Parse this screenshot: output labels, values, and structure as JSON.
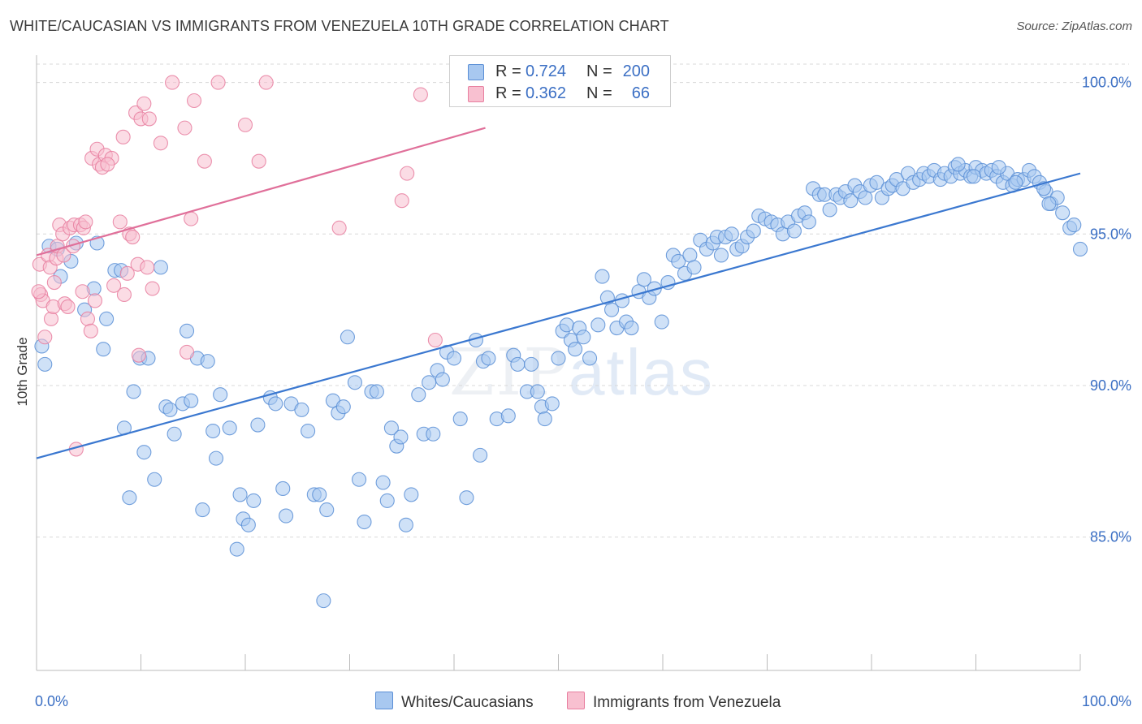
{
  "title": "WHITE/CAUCASIAN VS IMMIGRANTS FROM VENEZUELA 10TH GRADE CORRELATION CHART",
  "source": "Source: ZipAtlas.com",
  "watermark": {
    "zip": "ZIP",
    "atlas": "atlas"
  },
  "legend": {
    "rows": [
      {
        "r_label": "R =",
        "r_value": "0.724",
        "n_label": "N =",
        "n_value": "200",
        "color": "#a8c8f0",
        "border": "#5b8fd6"
      },
      {
        "r_label": "R =",
        "r_value": "0.362",
        "n_label": "N =",
        "n_value": "66",
        "color": "#f8c0d0",
        "border": "#e87fa0"
      }
    ]
  },
  "bottom_legend": [
    {
      "label": "Whites/Caucasians",
      "color": "#a8c8f0",
      "border": "#5b8fd6"
    },
    {
      "label": "Immigrants from Venezuela",
      "color": "#f8c0d0",
      "border": "#e87fa0"
    }
  ],
  "chart_data": {
    "type": "scatter",
    "title": "WHITE/CAUCASIAN VS IMMIGRANTS FROM VENEZUELA 10TH GRADE CORRELATION CHART",
    "xlabel": "",
    "ylabel": "10th Grade",
    "xlim": [
      0,
      100
    ],
    "ylim": [
      80.6,
      100.9
    ],
    "x_tick_labels": [
      "0.0%",
      "100.0%"
    ],
    "y_ticks": [
      85,
      90,
      95,
      100
    ],
    "y_tick_labels": [
      "85.0%",
      "90.0%",
      "95.0%",
      "100.0%"
    ],
    "grid": true,
    "legend_position": "top-center",
    "colors": {
      "blue": "#5b8fd6",
      "blue_fill": "#a8c8f0",
      "pink": "#e87fa0",
      "pink_fill": "#f8c0d0",
      "blue_line": "#3b78d0",
      "pink_line": "#e0709a"
    },
    "series": [
      {
        "name": "Whites/Caucasians",
        "trend": {
          "x": [
            0,
            100
          ],
          "y": [
            87.6,
            97.0
          ]
        },
        "points": [
          [
            0.5,
            91.3
          ],
          [
            0.8,
            90.7
          ],
          [
            1.2,
            94.6
          ],
          [
            2.0,
            94.5
          ],
          [
            2.3,
            93.6
          ],
          [
            3.3,
            94.1
          ],
          [
            3.8,
            94.7
          ],
          [
            4.6,
            92.5
          ],
          [
            5.5,
            93.2
          ],
          [
            5.8,
            94.7
          ],
          [
            6.4,
            91.2
          ],
          [
            6.7,
            92.2
          ],
          [
            7.5,
            93.8
          ],
          [
            8.1,
            93.8
          ],
          [
            8.4,
            88.6
          ],
          [
            8.9,
            86.3
          ],
          [
            9.3,
            89.8
          ],
          [
            9.9,
            90.9
          ],
          [
            10.3,
            87.8
          ],
          [
            10.7,
            90.9
          ],
          [
            11.3,
            86.9
          ],
          [
            11.9,
            93.9
          ],
          [
            12.4,
            89.3
          ],
          [
            12.8,
            89.2
          ],
          [
            13.2,
            88.4
          ],
          [
            14.0,
            89.4
          ],
          [
            14.4,
            91.8
          ],
          [
            14.8,
            89.5
          ],
          [
            15.4,
            90.9
          ],
          [
            15.9,
            85.9
          ],
          [
            16.4,
            90.8
          ],
          [
            16.9,
            88.5
          ],
          [
            17.2,
            87.6
          ],
          [
            17.6,
            89.7
          ],
          [
            18.5,
            88.6
          ],
          [
            19.2,
            84.6
          ],
          [
            19.5,
            86.4
          ],
          [
            19.8,
            85.6
          ],
          [
            20.3,
            85.4
          ],
          [
            20.8,
            86.2
          ],
          [
            21.2,
            88.7
          ],
          [
            22.4,
            89.6
          ],
          [
            22.9,
            89.4
          ],
          [
            23.6,
            86.6
          ],
          [
            23.9,
            85.7
          ],
          [
            24.4,
            89.4
          ],
          [
            25.4,
            89.2
          ],
          [
            26.0,
            88.5
          ],
          [
            26.6,
            86.4
          ],
          [
            27.1,
            86.4
          ],
          [
            27.5,
            82.9
          ],
          [
            27.8,
            85.9
          ],
          [
            28.4,
            89.5
          ],
          [
            28.9,
            89.1
          ],
          [
            29.4,
            89.3
          ],
          [
            29.8,
            91.6
          ],
          [
            30.5,
            90.1
          ],
          [
            30.9,
            86.9
          ],
          [
            31.4,
            85.5
          ],
          [
            32.1,
            89.8
          ],
          [
            32.6,
            89.8
          ],
          [
            33.2,
            86.8
          ],
          [
            33.6,
            86.2
          ],
          [
            34.0,
            88.6
          ],
          [
            34.5,
            88.0
          ],
          [
            34.9,
            88.3
          ],
          [
            35.4,
            85.4
          ],
          [
            35.9,
            86.4
          ],
          [
            36.6,
            89.7
          ],
          [
            37.1,
            88.4
          ],
          [
            37.6,
            90.1
          ],
          [
            38.0,
            88.4
          ],
          [
            38.4,
            90.5
          ],
          [
            38.9,
            90.2
          ],
          [
            39.3,
            91.1
          ],
          [
            40.0,
            90.9
          ],
          [
            40.6,
            88.9
          ],
          [
            41.2,
            86.3
          ],
          [
            42.1,
            91.5
          ],
          [
            42.5,
            87.7
          ],
          [
            42.8,
            90.8
          ],
          [
            43.3,
            90.9
          ],
          [
            44.1,
            88.9
          ],
          [
            45.2,
            89.0
          ],
          [
            45.7,
            91.0
          ],
          [
            46.1,
            90.7
          ],
          [
            47.0,
            89.8
          ],
          [
            47.4,
            90.7
          ],
          [
            48.0,
            89.8
          ],
          [
            48.4,
            89.3
          ],
          [
            48.7,
            88.9
          ],
          [
            49.4,
            89.4
          ],
          [
            50.0,
            90.9
          ],
          [
            50.4,
            91.8
          ],
          [
            50.8,
            92.0
          ],
          [
            51.2,
            91.5
          ],
          [
            51.6,
            91.2
          ],
          [
            52.0,
            91.9
          ],
          [
            52.4,
            91.6
          ],
          [
            53.0,
            90.9
          ],
          [
            53.8,
            92.0
          ],
          [
            54.2,
            93.6
          ],
          [
            54.7,
            92.9
          ],
          [
            55.1,
            92.5
          ],
          [
            55.6,
            91.9
          ],
          [
            56.1,
            92.8
          ],
          [
            56.5,
            92.1
          ],
          [
            57.0,
            91.9
          ],
          [
            57.7,
            93.1
          ],
          [
            58.2,
            93.5
          ],
          [
            58.7,
            92.9
          ],
          [
            59.2,
            93.2
          ],
          [
            59.9,
            92.1
          ],
          [
            60.5,
            93.4
          ],
          [
            61.0,
            94.3
          ],
          [
            61.5,
            94.1
          ],
          [
            62.1,
            93.7
          ],
          [
            62.6,
            94.3
          ],
          [
            63.0,
            93.9
          ],
          [
            63.6,
            94.8
          ],
          [
            64.2,
            94.5
          ],
          [
            64.8,
            94.7
          ],
          [
            65.2,
            94.9
          ],
          [
            65.6,
            94.3
          ],
          [
            66.0,
            94.9
          ],
          [
            66.6,
            95.0
          ],
          [
            67.1,
            94.5
          ],
          [
            67.6,
            94.6
          ],
          [
            68.1,
            94.9
          ],
          [
            68.7,
            95.1
          ],
          [
            69.2,
            95.6
          ],
          [
            69.8,
            95.5
          ],
          [
            70.4,
            95.4
          ],
          [
            71.0,
            95.3
          ],
          [
            71.5,
            95.0
          ],
          [
            72.0,
            95.4
          ],
          [
            72.6,
            95.1
          ],
          [
            73.0,
            95.6
          ],
          [
            73.6,
            95.7
          ],
          [
            74.0,
            95.4
          ],
          [
            74.4,
            96.5
          ],
          [
            75.0,
            96.3
          ],
          [
            75.5,
            96.3
          ],
          [
            76.0,
            95.8
          ],
          [
            76.6,
            96.3
          ],
          [
            77.0,
            96.2
          ],
          [
            77.5,
            96.4
          ],
          [
            78.0,
            96.1
          ],
          [
            78.4,
            96.6
          ],
          [
            78.9,
            96.4
          ],
          [
            79.4,
            96.2
          ],
          [
            79.9,
            96.6
          ],
          [
            80.5,
            96.7
          ],
          [
            81.0,
            96.2
          ],
          [
            81.6,
            96.5
          ],
          [
            82.0,
            96.6
          ],
          [
            82.4,
            96.8
          ],
          [
            83.0,
            96.5
          ],
          [
            83.5,
            97.0
          ],
          [
            84.0,
            96.7
          ],
          [
            84.6,
            96.8
          ],
          [
            85.0,
            97.0
          ],
          [
            85.5,
            96.9
          ],
          [
            86.0,
            97.1
          ],
          [
            86.6,
            96.8
          ],
          [
            87.0,
            97.0
          ],
          [
            87.6,
            96.9
          ],
          [
            88.0,
            97.2
          ],
          [
            88.5,
            97.0
          ],
          [
            89.0,
            97.1
          ],
          [
            89.5,
            96.9
          ],
          [
            90.0,
            97.2
          ],
          [
            90.6,
            97.1
          ],
          [
            91.0,
            97.0
          ],
          [
            91.5,
            97.1
          ],
          [
            92.0,
            96.9
          ],
          [
            92.6,
            96.7
          ],
          [
            93.0,
            97.0
          ],
          [
            93.5,
            96.6
          ],
          [
            94.0,
            96.8
          ],
          [
            94.6,
            96.8
          ],
          [
            95.1,
            97.1
          ],
          [
            95.6,
            96.9
          ],
          [
            96.1,
            96.7
          ],
          [
            96.7,
            96.4
          ],
          [
            97.2,
            96.0
          ],
          [
            97.8,
            96.2
          ],
          [
            98.3,
            95.7
          ],
          [
            99.0,
            95.2
          ],
          [
            99.4,
            95.3
          ],
          [
            100.0,
            94.5
          ],
          [
            96.5,
            96.5
          ],
          [
            97.0,
            96.0
          ],
          [
            93.8,
            96.7
          ],
          [
            92.2,
            97.2
          ],
          [
            89.8,
            96.9
          ],
          [
            88.3,
            97.3
          ]
        ]
      },
      {
        "name": "Immigrants from Venezuela",
        "trend": {
          "x": [
            0,
            43
          ],
          "y": [
            94.3,
            98.5
          ]
        },
        "points": [
          [
            0.3,
            94.0
          ],
          [
            0.4,
            93.0
          ],
          [
            0.6,
            92.8
          ],
          [
            0.8,
            91.6
          ],
          [
            1.1,
            94.3
          ],
          [
            1.3,
            93.9
          ],
          [
            1.4,
            92.2
          ],
          [
            1.6,
            92.6
          ],
          [
            1.9,
            94.2
          ],
          [
            2.0,
            94.6
          ],
          [
            2.2,
            95.3
          ],
          [
            2.5,
            95.0
          ],
          [
            2.6,
            94.3
          ],
          [
            2.7,
            92.7
          ],
          [
            3.0,
            92.6
          ],
          [
            3.2,
            95.2
          ],
          [
            3.5,
            94.6
          ],
          [
            3.6,
            95.3
          ],
          [
            3.8,
            87.9
          ],
          [
            4.2,
            95.3
          ],
          [
            4.4,
            93.1
          ],
          [
            4.5,
            95.2
          ],
          [
            4.7,
            95.4
          ],
          [
            4.9,
            92.2
          ],
          [
            5.2,
            91.8
          ],
          [
            5.3,
            97.5
          ],
          [
            5.6,
            92.8
          ],
          [
            5.8,
            97.8
          ],
          [
            6.0,
            97.3
          ],
          [
            6.3,
            97.2
          ],
          [
            6.6,
            97.6
          ],
          [
            7.2,
            97.5
          ],
          [
            7.4,
            93.3
          ],
          [
            8.0,
            95.4
          ],
          [
            8.3,
            98.2
          ],
          [
            8.4,
            93.0
          ],
          [
            8.7,
            93.7
          ],
          [
            8.9,
            95.0
          ],
          [
            9.2,
            94.9
          ],
          [
            9.5,
            99.0
          ],
          [
            9.7,
            94.0
          ],
          [
            10.0,
            98.8
          ],
          [
            10.3,
            99.3
          ],
          [
            10.6,
            93.9
          ],
          [
            10.8,
            98.8
          ],
          [
            11.1,
            93.2
          ],
          [
            11.9,
            98.0
          ],
          [
            13.0,
            100.0
          ],
          [
            14.2,
            98.5
          ],
          [
            14.4,
            91.1
          ],
          [
            14.8,
            95.5
          ],
          [
            15.1,
            99.4
          ],
          [
            16.1,
            97.4
          ],
          [
            17.4,
            100.0
          ],
          [
            20.0,
            98.6
          ],
          [
            21.3,
            97.4
          ],
          [
            22.0,
            100.0
          ],
          [
            29.0,
            95.2
          ],
          [
            35.0,
            96.1
          ],
          [
            35.5,
            97.0
          ],
          [
            36.8,
            99.6
          ],
          [
            38.2,
            91.5
          ],
          [
            6.8,
            97.3
          ],
          [
            1.7,
            93.4
          ],
          [
            0.2,
            93.1
          ],
          [
            9.8,
            91.0
          ]
        ]
      }
    ]
  }
}
